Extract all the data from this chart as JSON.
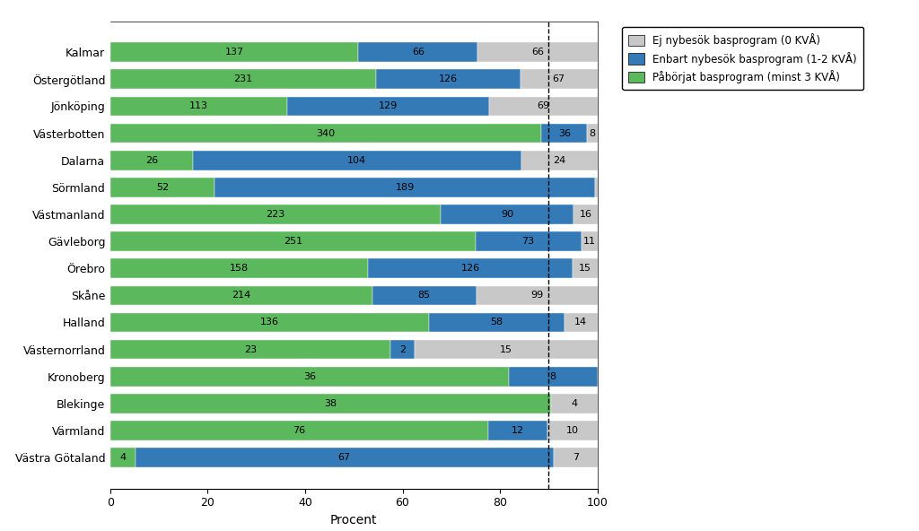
{
  "regions": [
    "Kalmar",
    "Östergötland",
    "Jönköping",
    "Västerbotten",
    "Dalarna",
    "Sörmland",
    "Västmanland",
    "Gävleborg",
    "Örebro",
    "Skåne",
    "Halland",
    "Västernorrland",
    "Kronoberg",
    "Blekinge",
    "Värmland",
    "Västra Götaland"
  ],
  "green_counts": [
    137,
    231,
    113,
    340,
    26,
    52,
    223,
    251,
    158,
    214,
    136,
    23,
    36,
    38,
    76,
    4
  ],
  "blue_counts": [
    66,
    126,
    129,
    36,
    104,
    189,
    90,
    73,
    126,
    85,
    58,
    2,
    8,
    0,
    12,
    67
  ],
  "gray_counts": [
    66,
    67,
    69,
    8,
    24,
    1,
    16,
    11,
    15,
    99,
    14,
    15,
    0,
    4,
    10,
    7
  ],
  "color_green": "#5CB85C",
  "color_blue": "#337AB7",
  "color_gray": "#C8C8C8",
  "xlabel": "Procent",
  "dashed_line_x": 90,
  "legend_labels": [
    "Ej nybesök basprogram (0 KVÅ)",
    "Enbart nybesök basprogram (1-2 KVÅ)",
    "Påbörjat basprogram (minst 3 KVÅ)"
  ],
  "xlim": [
    0,
    100
  ],
  "xticks": [
    0,
    20,
    40,
    60,
    80,
    100
  ]
}
